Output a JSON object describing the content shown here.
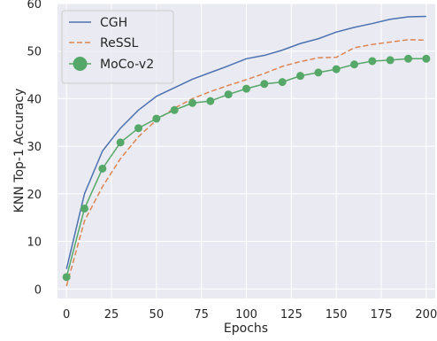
{
  "chart_data": {
    "type": "line",
    "title": "",
    "xlabel": "Epochs",
    "ylabel": "KNN Top-1 Accuracy",
    "xlim": [
      -5,
      205
    ],
    "ylim": [
      -2,
      60
    ],
    "xticks": [
      0,
      25,
      50,
      75,
      100,
      125,
      150,
      175,
      200
    ],
    "xtick_labels": [
      "0",
      "25",
      "50",
      "75",
      "100",
      "125",
      "150",
      "175",
      "200"
    ],
    "yticks": [
      0,
      10,
      20,
      30,
      40,
      50,
      60
    ],
    "ytick_labels": [
      "0",
      "10",
      "20",
      "30",
      "40",
      "50",
      "60"
    ],
    "grid": true,
    "background": "#EAEAF2",
    "legend_position": "top-left",
    "series": [
      {
        "name": "CGH",
        "color": "#4C72B0",
        "style": "solid",
        "marker": "none",
        "x": [
          0,
          10,
          20,
          30,
          40,
          50,
          60,
          70,
          80,
          90,
          100,
          110,
          120,
          130,
          140,
          150,
          160,
          170,
          180,
          190,
          200
        ],
        "y": [
          4.2,
          20.0,
          29.0,
          33.8,
          37.6,
          40.5,
          42.3,
          44.1,
          45.5,
          46.9,
          48.4,
          49.1,
          50.2,
          51.6,
          52.6,
          54.0,
          55.0,
          55.8,
          56.7,
          57.2,
          57.3
        ]
      },
      {
        "name": "ReSSL",
        "color": "#DD8452",
        "style": "dashed",
        "marker": "none",
        "x": [
          0,
          10,
          20,
          30,
          40,
          50,
          60,
          70,
          80,
          90,
          100,
          110,
          120,
          130,
          140,
          150,
          160,
          170,
          180,
          190,
          200
        ],
        "y": [
          0.6,
          14.3,
          21.5,
          27.4,
          32.0,
          35.5,
          38.0,
          40.0,
          41.5,
          42.8,
          44.0,
          45.3,
          46.8,
          47.8,
          48.6,
          48.7,
          50.7,
          51.4,
          51.9,
          52.4,
          52.3
        ]
      },
      {
        "name": "MoCo-v2",
        "color": "#55A868",
        "style": "solid",
        "marker": "circle",
        "x": [
          0,
          10,
          20,
          30,
          40,
          50,
          60,
          70,
          80,
          90,
          100,
          110,
          120,
          130,
          140,
          150,
          160,
          170,
          180,
          190,
          200
        ],
        "y": [
          2.5,
          16.9,
          25.3,
          30.8,
          33.8,
          35.8,
          37.6,
          39.1,
          39.5,
          40.9,
          42.1,
          43.1,
          43.5,
          44.8,
          45.5,
          46.2,
          47.2,
          47.9,
          48.1,
          48.4,
          48.4
        ]
      }
    ]
  }
}
